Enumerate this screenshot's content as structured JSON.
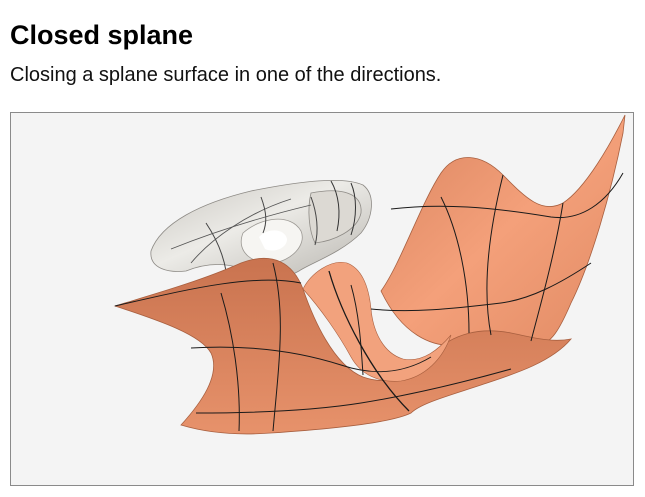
{
  "header": {
    "title": "Closed splane",
    "subtitle": "Closing a splane surface in one of the directions."
  },
  "figure": {
    "background_color": "#f4f4f4",
    "closed_surface_color": "#d9d6d0",
    "open_surface_color": "#f0956c",
    "grid_line_color": "#1a1a1a"
  }
}
